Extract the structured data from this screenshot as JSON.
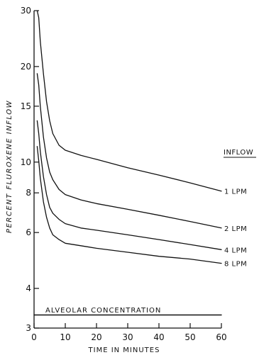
{
  "chart_data": {
    "type": "line",
    "title": "",
    "xlabel": "TIME IN MINUTES",
    "ylabel": "PERCENT FLUROXENE INFLOW",
    "xlim": [
      0,
      60
    ],
    "ylim": [
      3,
      30
    ],
    "yscale": "log",
    "x_ticks": [
      0,
      10,
      20,
      30,
      40,
      50,
      60
    ],
    "y_ticks": [
      3,
      4,
      6,
      8,
      10,
      15,
      20,
      30
    ],
    "grid": false,
    "legend_title": "INFLOW",
    "legend_placement": "right, next to line ends",
    "series": [
      {
        "name": "1 LPM",
        "x": [
          1,
          1.5,
          2,
          3,
          4,
          5,
          6,
          8,
          10,
          15,
          20,
          30,
          40,
          50,
          60
        ],
        "y": [
          30,
          28.5,
          24,
          19,
          15.5,
          13.5,
          12.3,
          11.3,
          10.9,
          10.5,
          10.2,
          9.6,
          9.1,
          8.6,
          8.1
        ]
      },
      {
        "name": "2 LPM",
        "x": [
          1,
          1.5,
          2,
          3,
          4,
          5,
          6,
          8,
          10,
          15,
          20,
          30,
          40,
          50,
          60
        ],
        "y": [
          19,
          17.5,
          15,
          12,
          10.3,
          9.3,
          8.8,
          8.2,
          7.9,
          7.6,
          7.4,
          7.1,
          6.8,
          6.5,
          6.2
        ]
      },
      {
        "name": "4 LPM",
        "x": [
          1,
          1.5,
          2,
          3,
          4,
          5,
          6,
          8,
          10,
          15,
          20,
          30,
          40,
          50,
          60
        ],
        "y": [
          13.5,
          12.3,
          10.8,
          9.0,
          7.9,
          7.2,
          6.9,
          6.6,
          6.4,
          6.2,
          6.1,
          5.9,
          5.7,
          5.5,
          5.3
        ]
      },
      {
        "name": "8 LPM",
        "x": [
          1,
          1.5,
          2,
          3,
          4,
          5,
          6,
          8,
          10,
          15,
          20,
          30,
          40,
          50,
          60
        ],
        "y": [
          11.2,
          10.1,
          8.9,
          7.5,
          6.7,
          6.2,
          5.9,
          5.7,
          5.55,
          5.45,
          5.35,
          5.2,
          5.05,
          4.95,
          4.8
        ]
      },
      {
        "name": "ALVEOLAR CONCENTRATION",
        "x": [
          0,
          60
        ],
        "y": [
          3.3,
          3.3
        ]
      }
    ],
    "annotations": [
      "ALVEOLAR CONCENTRATION"
    ]
  }
}
